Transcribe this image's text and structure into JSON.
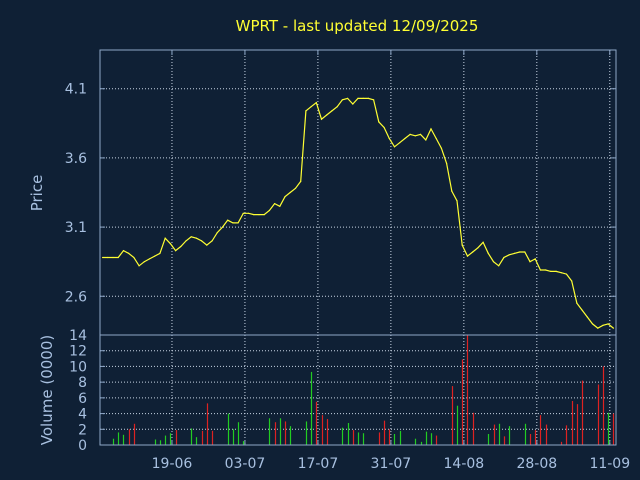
{
  "colors": {
    "background": "#0f2035",
    "axis": "#8fa8c8",
    "grid": "#c8d4e4",
    "title": "#ffff33",
    "price_line": "#ffff33",
    "volume_up": "#22cc22",
    "volume_down": "#dd2222",
    "tick_label": "#a8c0e0"
  },
  "chart_data": [
    {
      "type": "line",
      "title": "WPRT - last updated 12/09/2025",
      "ylabel": "Price",
      "ylim": [
        2.32,
        4.38
      ],
      "yticks": [
        2.6,
        3.1,
        3.6,
        4.1
      ],
      "ytick_labels": [
        "2.6",
        "3.1",
        "3.6",
        "4.1"
      ],
      "grid": true,
      "series": [
        {
          "values": [
            2.88,
            2.88,
            2.88,
            2.88,
            2.93,
            2.91,
            2.88,
            2.82,
            2.85,
            2.87,
            2.89,
            2.91,
            3.02,
            2.98,
            2.93,
            2.96,
            3.0,
            3.03,
            3.02,
            3.0,
            2.97,
            3.0,
            3.06,
            3.1,
            3.15,
            3.13,
            3.13,
            3.2,
            3.2,
            3.19,
            3.19,
            3.19,
            3.22,
            3.27,
            3.25,
            3.32,
            3.35,
            3.38,
            3.43,
            3.94,
            3.97,
            4.0,
            3.88,
            3.91,
            3.94,
            3.97,
            4.02,
            4.03,
            3.99,
            4.03,
            4.03,
            4.03,
            4.02,
            3.86,
            3.82,
            3.74,
            3.68,
            3.71,
            3.74,
            3.77,
            3.76,
            3.77,
            3.73,
            3.81,
            3.74,
            3.67,
            3.56,
            3.36,
            3.29,
            2.97,
            2.89,
            2.92,
            2.95,
            2.99,
            2.91,
            2.85,
            2.82,
            2.88,
            2.9,
            2.91,
            2.92,
            2.92,
            2.85,
            2.87,
            2.79,
            2.79,
            2.78,
            2.78,
            2.77,
            2.76,
            2.71,
            2.55,
            2.5,
            2.45,
            2.4,
            2.37,
            2.39,
            2.4,
            2.37
          ]
        }
      ]
    },
    {
      "type": "bar",
      "ylabel": "Volume (0000)",
      "ylim": [
        0,
        14
      ],
      "yticks": [
        0,
        2,
        4,
        6,
        8,
        10,
        12,
        14
      ],
      "ytick_labels": [
        "0",
        "2",
        "4",
        "6",
        "8",
        "10",
        "12",
        "14"
      ],
      "xtick_labels": [
        "19-06",
        "03-07",
        "17-07",
        "31-07",
        "14-08",
        "28-08",
        "11-09"
      ],
      "grid": true,
      "series": [
        {
          "values": [
            0,
            0,
            0.8,
            1.6,
            1.3,
            2.0,
            2.7,
            0,
            0,
            0,
            0.7,
            0.6,
            1.2,
            1.5,
            1.9,
            0,
            0,
            2.1,
            1.0,
            1.8,
            5.3,
            1.8,
            0,
            0,
            4.0,
            2.0,
            2.9,
            0.5,
            0,
            0,
            0,
            0,
            3.4,
            2.9,
            3.4,
            3.0,
            2.4,
            0,
            0,
            3.0,
            9.3,
            5.5,
            3.8,
            3.3,
            0,
            0,
            2.2,
            2.8,
            1.9,
            1.6,
            1.5,
            0,
            0,
            1.6,
            3.1,
            2.0,
            1.4,
            1.8,
            0,
            0,
            0.8,
            0.4,
            1.7,
            1.5,
            1.2,
            0,
            0,
            7.5,
            5.0,
            10.9,
            14.0,
            4.1,
            0,
            0,
            1.4,
            2.6,
            2.7,
            1.1,
            2.4,
            0,
            0,
            2.7,
            1.4,
            1.9,
            3.8,
            2.6,
            0,
            0,
            0.4,
            2.5,
            5.6,
            5.2,
            8.2,
            0,
            0,
            7.7,
            10.0,
            4.1,
            4.0
          ],
          "direction": [
            "u",
            "u",
            "u",
            "u",
            "u",
            "d",
            "d",
            "u",
            "u",
            "u",
            "u",
            "u",
            "u",
            "u",
            "d",
            "d",
            "d",
            "u",
            "u",
            "d",
            "d",
            "d",
            "u",
            "u",
            "u",
            "u",
            "u",
            "u",
            "u",
            "u",
            "u",
            "u",
            "u",
            "d",
            "u",
            "d",
            "u",
            "u",
            "u",
            "u",
            "u",
            "d",
            "d",
            "d",
            "u",
            "u",
            "u",
            "u",
            "d",
            "u",
            "u",
            "u",
            "u",
            "d",
            "d",
            "d",
            "u",
            "u",
            "u",
            "u",
            "u",
            "u",
            "u",
            "u",
            "d",
            "u",
            "d",
            "d",
            "u",
            "d",
            "d",
            "d",
            "u",
            "u",
            "u",
            "d",
            "u",
            "d",
            "u",
            "u",
            "u",
            "u",
            "d",
            "d",
            "d",
            "d",
            "d",
            "u",
            "d",
            "d",
            "d",
            "d",
            "d",
            "d",
            "d",
            "d",
            "d",
            "u",
            "d"
          ]
        }
      ]
    }
  ]
}
